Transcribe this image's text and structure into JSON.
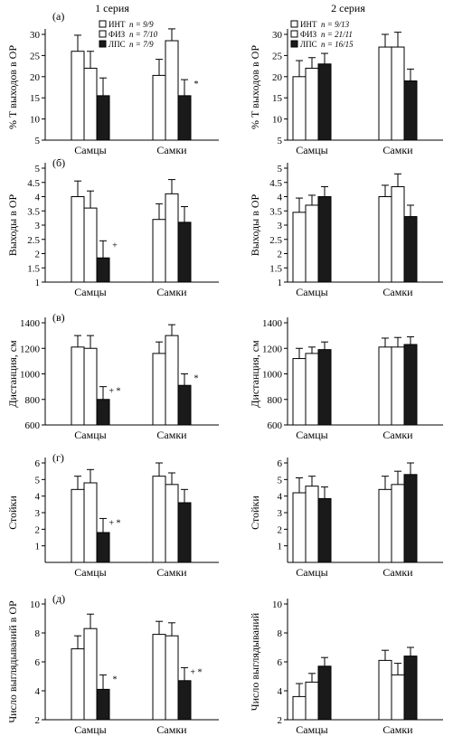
{
  "series_titles": {
    "left": "1 серия",
    "right": "2 серия"
  },
  "legends": {
    "left": [
      {
        "label": "ИНТ",
        "n": "n = 9/9",
        "fill": "#ffffff"
      },
      {
        "label": "ФИЗ",
        "n": "n = 7/10",
        "fill": "#ffffff"
      },
      {
        "label": "ЛПС",
        "n": "n = 7/9",
        "fill": "#1a1a1a"
      }
    ],
    "right": [
      {
        "label": "ИНТ",
        "n": "n = 9/13",
        "fill": "#ffffff"
      },
      {
        "label": "ФИЗ",
        "n": "n = 21/11",
        "fill": "#ffffff"
      },
      {
        "label": "ЛПС",
        "n": "n = 16/15",
        "fill": "#1a1a1a"
      }
    ]
  },
  "colors": {
    "axis": "#000000",
    "bar_light": "#ffffff",
    "bar_dark": "#1a1a1a"
  },
  "chart_data": [
    {
      "type": "bar",
      "panel": "(а)",
      "column": "left",
      "ylabel": "% Т выходов в ОР",
      "ylim": [
        5,
        30
      ],
      "yticks": [
        5,
        10,
        15,
        20,
        25,
        30
      ],
      "categories": [
        "Самцы",
        "Самки"
      ],
      "series": [
        {
          "name": "ИНТ",
          "values": [
            26,
            20.3
          ],
          "errors": [
            3.8,
            3.8
          ]
        },
        {
          "name": "ФИЗ",
          "values": [
            22,
            28.5
          ],
          "errors": [
            4,
            2.8
          ]
        },
        {
          "name": "ЛПС",
          "values": [
            15.5,
            15.5
          ],
          "errors": [
            4.2,
            3.8
          ]
        }
      ],
      "marks": [
        {
          "cat": 1,
          "series": 2,
          "text": "*"
        }
      ]
    },
    {
      "type": "bar",
      "panel": "",
      "column": "right",
      "ylabel": "% Т выходов в ОР",
      "ylim": [
        5,
        30
      ],
      "yticks": [
        5,
        10,
        15,
        20,
        25,
        30
      ],
      "categories": [
        "Самцы",
        "Самки"
      ],
      "series": [
        {
          "name": "ИНТ",
          "values": [
            20,
            27
          ],
          "errors": [
            3.8,
            3
          ]
        },
        {
          "name": "ФИЗ",
          "values": [
            22,
            27
          ],
          "errors": [
            2.5,
            3.5
          ]
        },
        {
          "name": "ЛПС",
          "values": [
            23,
            19
          ],
          "errors": [
            2.5,
            2.8
          ]
        }
      ],
      "marks": []
    },
    {
      "type": "bar",
      "panel": "(б)",
      "column": "left",
      "ylabel": "Выходы в ОР",
      "ylim": [
        1,
        5
      ],
      "yticks": [
        1.0,
        1.5,
        2.0,
        2.5,
        3.0,
        3.5,
        4.0,
        4.5,
        5.0
      ],
      "categories": [
        "Самцы",
        "Самки"
      ],
      "series": [
        {
          "name": "ИНТ",
          "values": [
            4.0,
            3.2
          ],
          "errors": [
            0.55,
            0.55
          ]
        },
        {
          "name": "ФИЗ",
          "values": [
            3.6,
            4.1
          ],
          "errors": [
            0.6,
            0.5
          ]
        },
        {
          "name": "ЛПС",
          "values": [
            1.85,
            3.1
          ],
          "errors": [
            0.6,
            0.55
          ]
        }
      ],
      "marks": [
        {
          "cat": 0,
          "series": 2,
          "text": "+"
        }
      ]
    },
    {
      "type": "bar",
      "panel": "",
      "column": "right",
      "ylabel": "Выходы в ОР",
      "ylim": [
        1,
        5
      ],
      "yticks": [
        1.0,
        1.5,
        2.0,
        2.5,
        3.0,
        3.5,
        4.0,
        4.5,
        5.0
      ],
      "categories": [
        "Самцы",
        "Самки"
      ],
      "series": [
        {
          "name": "ИНТ",
          "values": [
            3.45,
            4.0
          ],
          "errors": [
            0.5,
            0.4
          ]
        },
        {
          "name": "ФИЗ",
          "values": [
            3.7,
            4.35
          ],
          "errors": [
            0.35,
            0.45
          ]
        },
        {
          "name": "ЛПС",
          "values": [
            4.0,
            3.3
          ],
          "errors": [
            0.35,
            0.4
          ]
        }
      ],
      "marks": []
    },
    {
      "type": "bar",
      "panel": "(в)",
      "column": "left",
      "ylabel": "Дистанция, см",
      "ylim": [
        600,
        1400
      ],
      "yticks": [
        600,
        800,
        1000,
        1200,
        1400
      ],
      "categories": [
        "Самцы",
        "Самки"
      ],
      "series": [
        {
          "name": "ИНТ",
          "values": [
            1210,
            1160
          ],
          "errors": [
            90,
            90
          ]
        },
        {
          "name": "ФИЗ",
          "values": [
            1200,
            1300
          ],
          "errors": [
            100,
            85
          ]
        },
        {
          "name": "ЛПС",
          "values": [
            800,
            910
          ],
          "errors": [
            100,
            90
          ]
        }
      ],
      "marks": [
        {
          "cat": 0,
          "series": 2,
          "text": "+ *"
        },
        {
          "cat": 1,
          "series": 2,
          "text": "*"
        }
      ]
    },
    {
      "type": "bar",
      "panel": "",
      "column": "right",
      "ylabel": "Дистанция, см",
      "ylim": [
        600,
        1400
      ],
      "yticks": [
        600,
        800,
        1000,
        1200,
        1400
      ],
      "categories": [
        "Самцы",
        "Самки"
      ],
      "series": [
        {
          "name": "ИНТ",
          "values": [
            1120,
            1210
          ],
          "errors": [
            80,
            70
          ]
        },
        {
          "name": "ФИЗ",
          "values": [
            1160,
            1210
          ],
          "errors": [
            50,
            75
          ]
        },
        {
          "name": "ЛПС",
          "values": [
            1190,
            1230
          ],
          "errors": [
            60,
            60
          ]
        }
      ],
      "marks": []
    },
    {
      "type": "bar",
      "panel": "(г)",
      "column": "left",
      "ylabel": "Стойки",
      "ylim": [
        0,
        6
      ],
      "yticks": [
        1,
        2,
        3,
        4,
        5,
        6
      ],
      "categories": [
        "Самцы",
        "Самки"
      ],
      "series": [
        {
          "name": "ИНТ",
          "values": [
            4.4,
            5.2
          ],
          "errors": [
            0.8,
            0.8
          ]
        },
        {
          "name": "ФИЗ",
          "values": [
            4.8,
            4.7
          ],
          "errors": [
            0.8,
            0.7
          ]
        },
        {
          "name": "ЛПС",
          "values": [
            1.8,
            3.6
          ],
          "errors": [
            0.85,
            0.8
          ]
        }
      ],
      "marks": [
        {
          "cat": 0,
          "series": 2,
          "text": "+ *"
        }
      ]
    },
    {
      "type": "bar",
      "panel": "",
      "column": "right",
      "ylabel": "Стойки",
      "ylim": [
        0,
        6
      ],
      "yticks": [
        1,
        2,
        3,
        4,
        5,
        6
      ],
      "categories": [
        "Самцы",
        "Самки"
      ],
      "series": [
        {
          "name": "ИНТ",
          "values": [
            4.2,
            4.4
          ],
          "errors": [
            0.9,
            0.8
          ]
        },
        {
          "name": "ФИЗ",
          "values": [
            4.6,
            4.7
          ],
          "errors": [
            0.6,
            0.8
          ]
        },
        {
          "name": "ЛПС",
          "values": [
            3.85,
            5.3
          ],
          "errors": [
            0.7,
            0.7
          ]
        }
      ],
      "marks": []
    },
    {
      "type": "bar",
      "panel": "(д)",
      "column": "left",
      "ylabel": "Число выглядываний в ОР",
      "ylim": [
        2,
        10
      ],
      "yticks": [
        2,
        4,
        6,
        8,
        10
      ],
      "categories": [
        "Самцы",
        "Самки"
      ],
      "series": [
        {
          "name": "ИНТ",
          "values": [
            6.9,
            7.9
          ],
          "errors": [
            0.9,
            0.9
          ]
        },
        {
          "name": "ФИЗ",
          "values": [
            8.3,
            7.8
          ],
          "errors": [
            1.0,
            0.9
          ]
        },
        {
          "name": "ЛПС",
          "values": [
            4.1,
            4.7
          ],
          "errors": [
            1.0,
            0.9
          ]
        }
      ],
      "marks": [
        {
          "cat": 0,
          "series": 2,
          "text": "*"
        },
        {
          "cat": 1,
          "series": 2,
          "text": "+ *"
        }
      ]
    },
    {
      "type": "bar",
      "panel": "",
      "column": "right",
      "ylabel": "Число выглядываний",
      "ylim": [
        2,
        10
      ],
      "yticks": [
        2,
        4,
        6,
        8,
        10
      ],
      "categories": [
        "Самцы",
        "Самки"
      ],
      "series": [
        {
          "name": "ИНТ",
          "values": [
            3.6,
            6.1
          ],
          "errors": [
            0.9,
            0.7
          ]
        },
        {
          "name": "ФИЗ",
          "values": [
            4.6,
            5.1
          ],
          "errors": [
            0.6,
            0.8
          ]
        },
        {
          "name": "ЛПС",
          "values": [
            5.7,
            6.4
          ],
          "errors": [
            0.6,
            0.6
          ]
        }
      ],
      "marks": []
    }
  ]
}
